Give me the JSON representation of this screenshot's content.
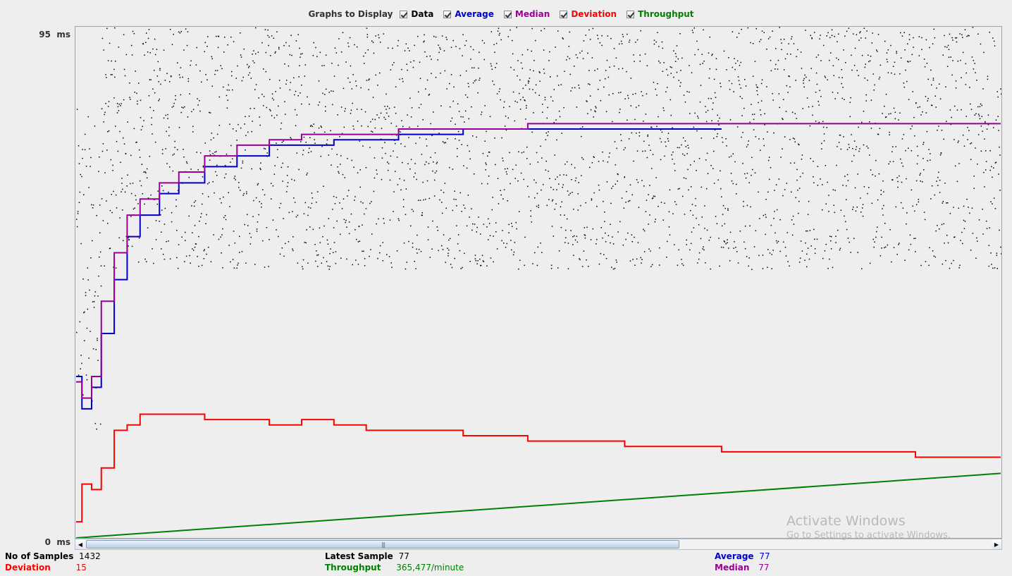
{
  "legend": {
    "title": "Graphs to Display",
    "items": [
      {
        "id": "data",
        "label": "Data",
        "color": "#000000"
      },
      {
        "id": "average",
        "label": "Average",
        "color": "#0000cc"
      },
      {
        "id": "median",
        "label": "Median",
        "color": "#990099"
      },
      {
        "id": "deviation",
        "label": "Deviation",
        "color": "#ff0000"
      },
      {
        "id": "throughput",
        "label": "Throughput",
        "color": "#008000"
      }
    ]
  },
  "axis": {
    "y_max_label": "95  ms",
    "y_min_label": "0  ms"
  },
  "stats": {
    "samples_label": "No of Samples",
    "samples_value": "1432",
    "deviation_label": "Deviation",
    "deviation_value": "15",
    "latest_label": "Latest Sample",
    "latest_value": "77",
    "throughput_label": "Throughput",
    "throughput_value": "365,477/minute",
    "average_label": "Average",
    "average_value": "77",
    "median_label": "Median",
    "median_value": "77"
  },
  "watermark": {
    "line1": "Activate Windows",
    "line2": "Go to Settings to activate Windows."
  },
  "chart_data": {
    "type": "line",
    "ylim": [
      0,
      95
    ],
    "x_count": 1432,
    "series": [
      {
        "name": "Average",
        "color": "#0000cc",
        "points": [
          [
            1,
            30
          ],
          [
            10,
            24
          ],
          [
            25,
            28
          ],
          [
            40,
            38
          ],
          [
            60,
            48
          ],
          [
            80,
            56
          ],
          [
            100,
            60
          ],
          [
            130,
            64
          ],
          [
            160,
            66
          ],
          [
            200,
            69
          ],
          [
            250,
            71
          ],
          [
            300,
            73
          ],
          [
            350,
            73
          ],
          [
            400,
            74
          ],
          [
            500,
            75
          ],
          [
            600,
            76
          ],
          [
            700,
            76
          ],
          [
            800,
            76
          ],
          [
            950,
            76
          ],
          [
            1000,
            76
          ]
        ]
      },
      {
        "name": "Median",
        "color": "#990099",
        "points": [
          [
            1,
            29
          ],
          [
            10,
            26
          ],
          [
            25,
            30
          ],
          [
            40,
            44
          ],
          [
            60,
            53
          ],
          [
            80,
            60
          ],
          [
            100,
            63
          ],
          [
            130,
            66
          ],
          [
            160,
            68
          ],
          [
            200,
            71
          ],
          [
            250,
            73
          ],
          [
            300,
            74
          ],
          [
            350,
            75
          ],
          [
            400,
            75
          ],
          [
            500,
            76
          ],
          [
            600,
            76
          ],
          [
            700,
            77
          ],
          [
            900,
            77
          ],
          [
            1200,
            77
          ],
          [
            1432,
            77
          ]
        ]
      },
      {
        "name": "Deviation",
        "color": "#ff0000",
        "points": [
          [
            1,
            3
          ],
          [
            10,
            10
          ],
          [
            25,
            9
          ],
          [
            40,
            13
          ],
          [
            60,
            20
          ],
          [
            80,
            21
          ],
          [
            100,
            23
          ],
          [
            150,
            23
          ],
          [
            200,
            22
          ],
          [
            250,
            22
          ],
          [
            300,
            21
          ],
          [
            350,
            22
          ],
          [
            400,
            21
          ],
          [
            450,
            20
          ],
          [
            500,
            20
          ],
          [
            600,
            19
          ],
          [
            700,
            18
          ],
          [
            850,
            17
          ],
          [
            1000,
            16
          ],
          [
            1150,
            16
          ],
          [
            1300,
            15
          ],
          [
            1432,
            15
          ]
        ]
      },
      {
        "name": "Throughput",
        "color": "#008000",
        "points": [
          [
            1,
            0
          ],
          [
            1432,
            12
          ]
        ]
      }
    ],
    "scatter": {
      "name": "Data",
      "color": "#000000",
      "typical_range": [
        50,
        95
      ],
      "early_range": [
        20,
        80
      ]
    }
  }
}
